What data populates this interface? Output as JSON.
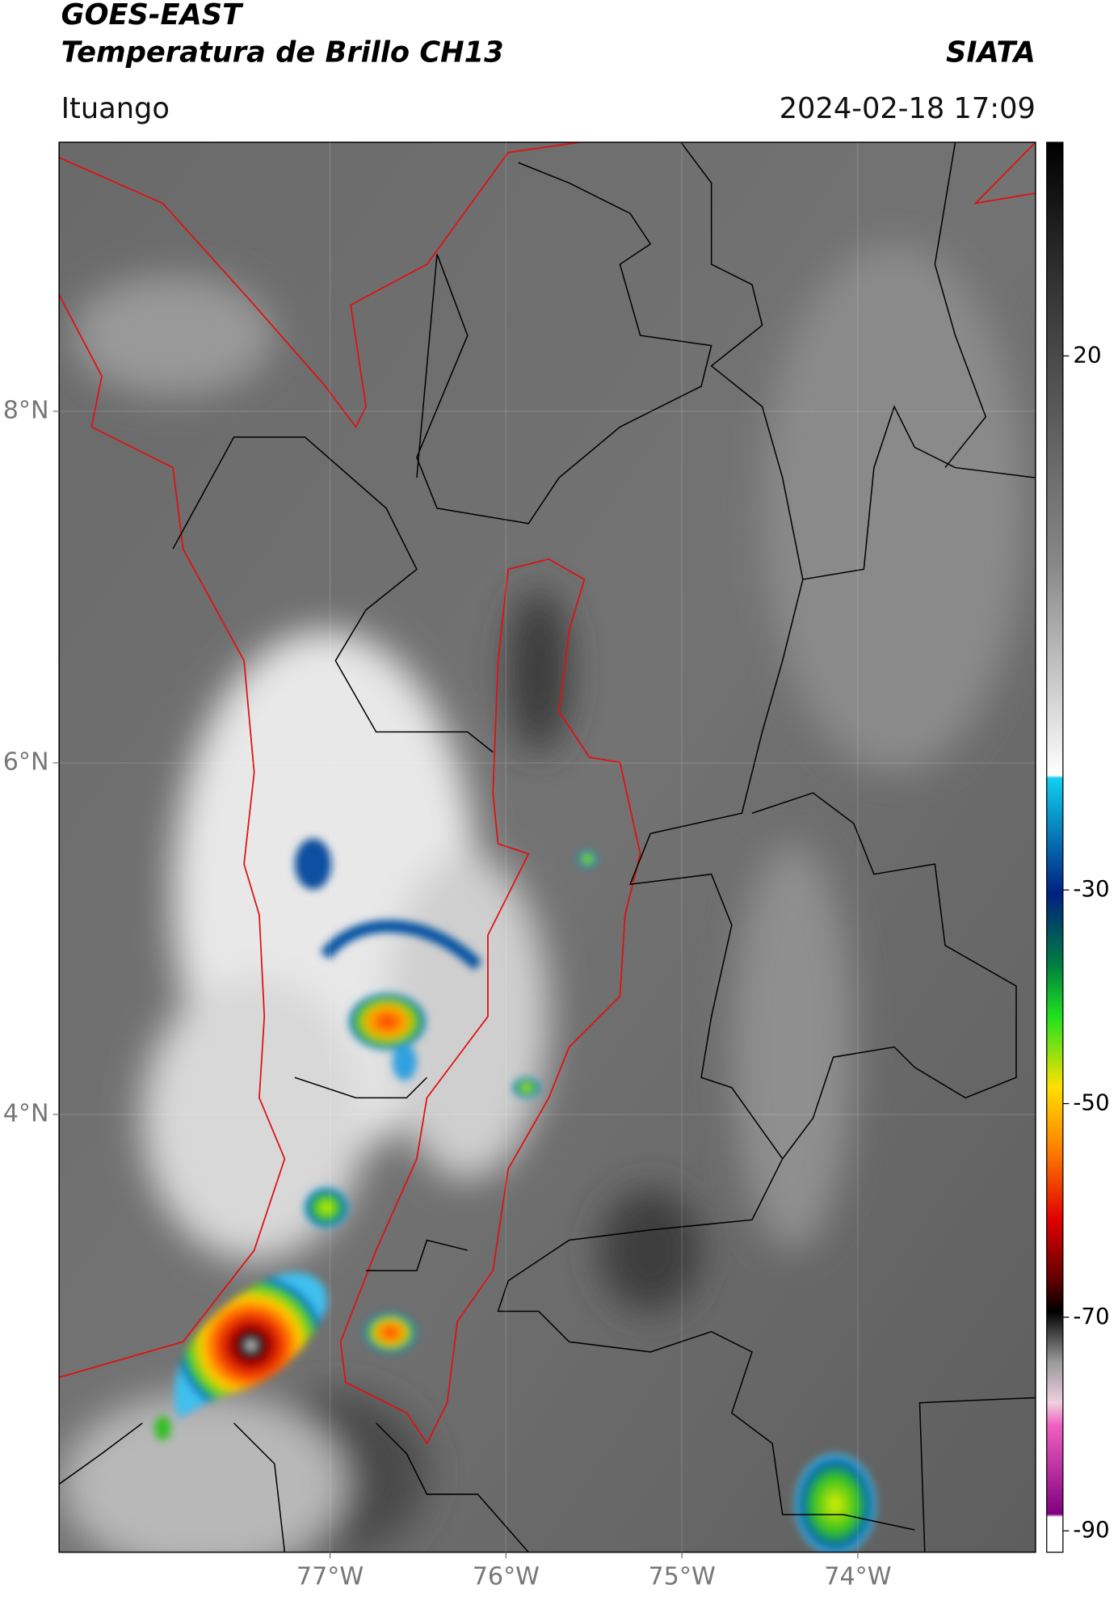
{
  "header": {
    "title": "GOES-EAST",
    "subtitle": "Temperatura de Brillo CH13",
    "source": "SIATA",
    "location": "Ituango",
    "datetime": "2024-02-18 17:09"
  },
  "map": {
    "lonlim": [
      -78.54,
      -72.99
    ],
    "latlim": [
      1.51,
      9.53
    ],
    "lat_ticks": [
      {
        "value": 8,
        "label": "8°N"
      },
      {
        "value": 6,
        "label": "6°N"
      },
      {
        "value": 4,
        "label": "4°N"
      }
    ],
    "lon_ticks": [
      {
        "value": -77,
        "label": "77°W"
      },
      {
        "value": -76,
        "label": "76°W"
      },
      {
        "value": -75,
        "label": "75°W"
      },
      {
        "value": -74,
        "label": "74°W"
      }
    ]
  },
  "colorbar": {
    "lim": [
      -92,
      40
    ],
    "ticks": [
      20,
      -30,
      -50,
      -70,
      -90
    ]
  }
}
